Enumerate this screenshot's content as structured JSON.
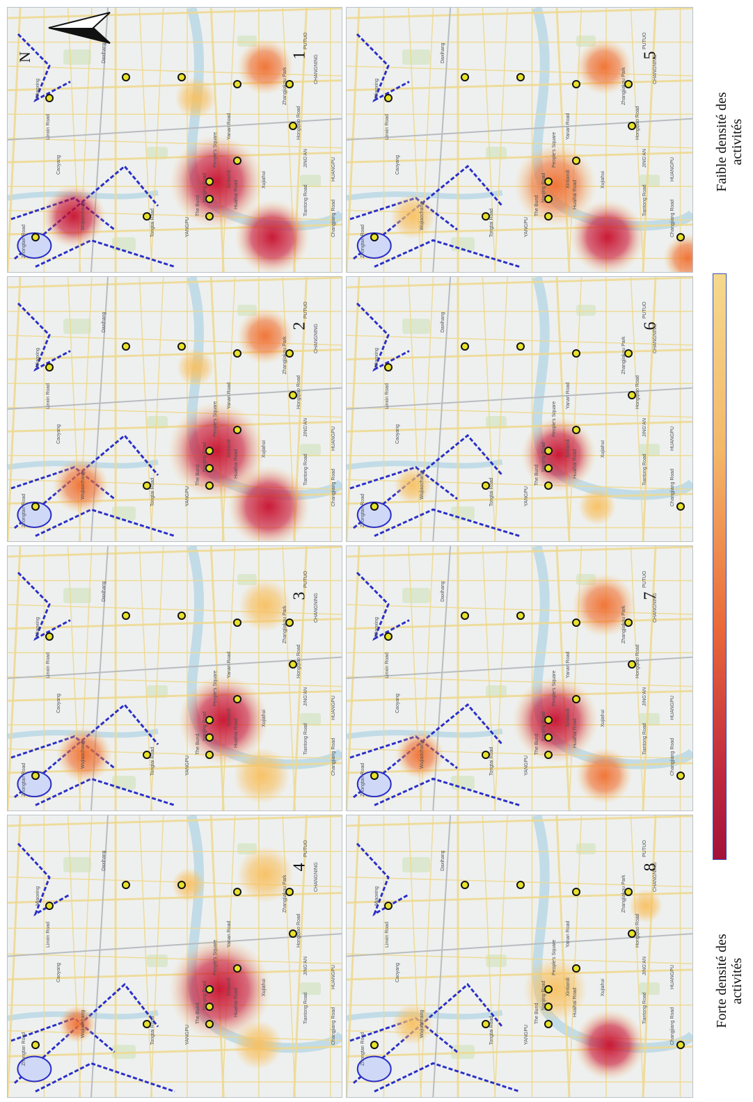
{
  "north_label": "N",
  "legend": {
    "low_label_line1": "Faible densité des",
    "low_label_line2": "activités",
    "high_label_line1": "Forte densité des",
    "high_label_line2": "activités",
    "low_color": "#f5d98e",
    "high_color": "#a3123a"
  },
  "colors": {
    "river": "#bcd9e6",
    "metro": "#2a2fc8",
    "road": "#efd98f",
    "station_fill": "#e8e22a",
    "heat_high": "#c8102e",
    "heat_mid": "#f07030",
    "heat_low": "#f8c060"
  },
  "place_labels": [
    "Zhongtan Road",
    "Tongtai Road",
    "Wujiaochang",
    "Caoyang",
    "Linxin Road",
    "Miaoxing",
    "Daxihang",
    "Zhangjiakou Park",
    "Yanan Road",
    "People's Square",
    "Nanjing Road",
    "The Bund",
    "Xintiandi",
    "Huaihai Road",
    "Xujiahui",
    "Tiantong Road",
    "Hongqiao Road",
    "Changjiang Road",
    "YANGPU",
    "PUTUO",
    "CHANGNING",
    "HUANGPU",
    "JING'AN"
  ],
  "panels": [
    {
      "number": "1"
    },
    {
      "number": "2"
    },
    {
      "number": "3"
    },
    {
      "number": "4"
    },
    {
      "number": "5"
    },
    {
      "number": "6"
    },
    {
      "number": "7"
    },
    {
      "number": "8"
    }
  ]
}
